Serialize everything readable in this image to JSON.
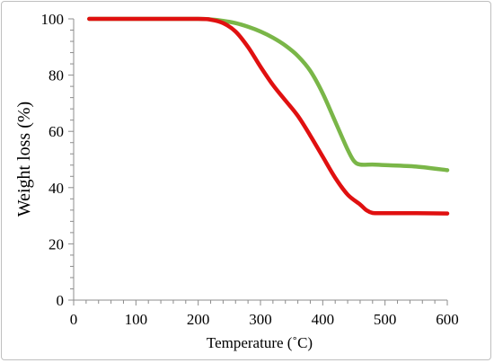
{
  "chart_data": {
    "type": "line",
    "xlabel": "Temperature (˚C)",
    "ylabel": "Weight loss (%)",
    "xlim": [
      0,
      600
    ],
    "ylim": [
      0,
      100
    ],
    "xticks": [
      0,
      100,
      200,
      300,
      400,
      500,
      600
    ],
    "yticks": [
      0,
      20,
      40,
      60,
      80,
      100
    ],
    "x_minor_step": 20,
    "y_minor_step": 4,
    "grid": false,
    "legend": "none",
    "series": [
      {
        "color": "#e01010",
        "x": [
          25,
          100,
          200,
          220,
          240,
          260,
          280,
          300,
          320,
          340,
          360,
          380,
          400,
          420,
          440,
          460,
          470,
          480,
          500,
          550,
          600
        ],
        "values": [
          100,
          100,
          100,
          99.7,
          98.5,
          95.5,
          90,
          83,
          76.5,
          71,
          65.5,
          58.5,
          51,
          43.5,
          37.5,
          34,
          32,
          31,
          30.9,
          30.9,
          30.8
        ]
      },
      {
        "color": "#7ab648",
        "x": [
          25,
          100,
          200,
          220,
          240,
          260,
          280,
          300,
          320,
          340,
          360,
          380,
          400,
          420,
          440,
          450,
          460,
          480,
          500,
          550,
          600
        ],
        "values": [
          100,
          100,
          100,
          99.8,
          99.3,
          98.5,
          97.2,
          95.5,
          93.3,
          90.5,
          86.8,
          81.5,
          73.5,
          63.5,
          53.5,
          49.5,
          48.2,
          48.2,
          48,
          47.5,
          46.2
        ]
      }
    ]
  }
}
